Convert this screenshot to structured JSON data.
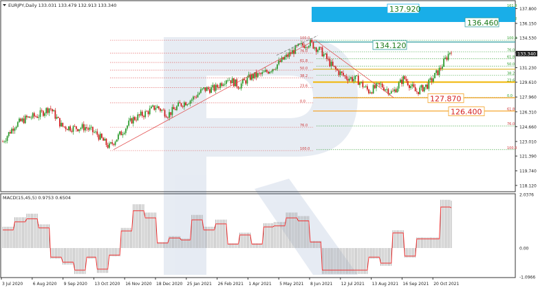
{
  "header": {
    "symbol_line": "EURJPY,Daily  133.031 133.479 132.913 133.340"
  },
  "macd": {
    "label": "MACD(15,45,5) 0.9753 0.6504"
  },
  "price_axis": {
    "ticks": [
      "137.800",
      "136.150",
      "134.530",
      "132.880",
      "131.230",
      "129.610",
      "127.960",
      "126.310",
      "124.660",
      "123.010",
      "121.390",
      "119.740",
      "118.120"
    ],
    "current_price": "133.340"
  },
  "macd_axis": {
    "ticks": [
      "2.0376",
      "0.00",
      "-1.0966"
    ]
  },
  "time_axis": {
    "ticks": [
      "3 Jul 2020",
      "6 Aug 2020",
      "9 Sep 2020",
      "13 Oct 2020",
      "16 Nov 2020",
      "18 Dec 2020",
      "25 Jan 2021",
      "26 Feb 2021",
      "1 Apr 2021",
      "5 May 2021",
      "8 Jun 2021",
      "12 Jul 2021",
      "13 Aug 2021",
      "16 Sep 2021",
      "20 Oct 2021"
    ]
  },
  "annotations": {
    "target_high": "137.920",
    "target_mid": "136.460",
    "resistance": "134.120",
    "support_1": "127.870",
    "support_2": "126.400"
  },
  "fib_left": [
    "100.0",
    "76.0",
    "61.8",
    "50.0",
    "38.2",
    "23.6",
    "0.0",
    "76.0",
    "100.0"
  ],
  "fib_right": [
    "161.8",
    "138.2",
    "100.0",
    "76.0",
    "61.8",
    "50.0",
    "38.2",
    "23.6",
    "0.0",
    "61.8",
    "76.0",
    "100.0"
  ],
  "chart_data": {
    "type": "candlestick",
    "title": "",
    "symbol": "EURJPY",
    "timeframe": "Daily",
    "ohlc_current": {
      "open": 133.031,
      "high": 133.479,
      "low": 132.913,
      "close": 133.34
    },
    "ylim": [
      117.5,
      138.6
    ],
    "yticks": [
      137.8,
      136.15,
      134.53,
      132.88,
      131.23,
      129.61,
      127.96,
      126.31,
      124.66,
      123.01,
      121.39,
      119.74,
      118.12
    ],
    "x": [
      "3 Jul 2020",
      "6 Aug 2020",
      "9 Sep 2020",
      "13 Oct 2020",
      "16 Nov 2020",
      "18 Dec 2020",
      "25 Jan 2021",
      "26 Feb 2021",
      "1 Apr 2021",
      "5 May 2021",
      "8 Jun 2021",
      "12 Jul 2021",
      "13 Aug 2021",
      "16 Sep 2021",
      "20 Oct 2021"
    ],
    "close_path": [
      123.0,
      124.8,
      125.6,
      125.9,
      126.8,
      124.7,
      124.5,
      124.6,
      123.8,
      122.4,
      123.9,
      125.5,
      126.1,
      126.9,
      126.0,
      127.1,
      127.7,
      128.8,
      128.9,
      130.1,
      129.2,
      130.2,
      130.5,
      131.3,
      132.4,
      133.5,
      134.0,
      133.0,
      131.2,
      130.2,
      129.9,
      128.6,
      129.3,
      128.4,
      130.1,
      128.5,
      129.3,
      131.0,
      133.3
    ],
    "levels": [
      137.92,
      136.46,
      134.12,
      127.87,
      126.4
    ],
    "macd": {
      "label": "MACD(15,45,5)",
      "value": 0.9753,
      "signal": 0.6504,
      "ylim": [
        -1.0966,
        2.0376
      ]
    },
    "grid": true,
    "legend": "none"
  }
}
